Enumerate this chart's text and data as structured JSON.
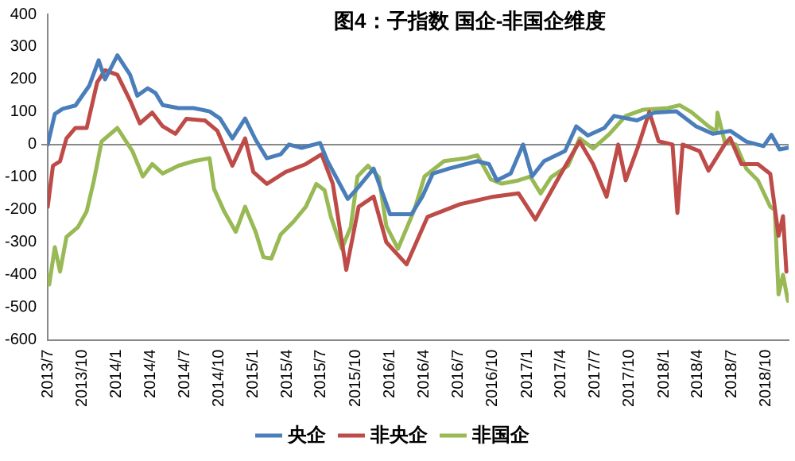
{
  "chart_data": {
    "type": "line",
    "title": "图4：子指数 国企-非国企维度",
    "xlim": [
      "2013-07-01",
      "2018-11-30"
    ],
    "xticks": [
      {
        "value": "2013-07-01",
        "label": "2013/7"
      },
      {
        "value": "2013-10-01",
        "label": "2013/10"
      },
      {
        "value": "2014-01-01",
        "label": "2014/1"
      },
      {
        "value": "2014-04-01",
        "label": "2014/4"
      },
      {
        "value": "2014-07-01",
        "label": "2014/7"
      },
      {
        "value": "2014-10-01",
        "label": "2014/10"
      },
      {
        "value": "2015-01-01",
        "label": "2015/1"
      },
      {
        "value": "2015-04-01",
        "label": "2015/4"
      },
      {
        "value": "2015-07-01",
        "label": "2015/7"
      },
      {
        "value": "2015-10-01",
        "label": "2015/10"
      },
      {
        "value": "2016-01-01",
        "label": "2016/1"
      },
      {
        "value": "2016-04-01",
        "label": "2016/4"
      },
      {
        "value": "2016-07-01",
        "label": "2016/7"
      },
      {
        "value": "2016-10-01",
        "label": "2016/10"
      },
      {
        "value": "2017-01-01",
        "label": "2017/1"
      },
      {
        "value": "2017-04-01",
        "label": "2017/4"
      },
      {
        "value": "2017-07-01",
        "label": "2017/7"
      },
      {
        "value": "2017-10-01",
        "label": "2017/10"
      },
      {
        "value": "2018-01-01",
        "label": "2018/1"
      },
      {
        "value": "2018-04-01",
        "label": "2018/4"
      },
      {
        "value": "2018-07-01",
        "label": "2018/7"
      },
      {
        "value": "2018-10-01",
        "label": "2018/10"
      }
    ],
    "ylim": [
      -600,
      400
    ],
    "yticks": [
      -600,
      -500,
      -400,
      -300,
      -200,
      -100,
      0,
      100,
      200,
      300,
      400
    ],
    "legend": "bottom",
    "marker": "none",
    "line_style": "solid",
    "series": [
      {
        "name": "央企",
        "color": "#4a7ebb",
        "x": [
          "2013-07-01",
          "2013-07-20",
          "2013-08-10",
          "2013-09-13",
          "2013-10-20",
          "2013-11-14",
          "2013-12-01",
          "2014-01-03",
          "2014-02-06",
          "2014-02-25",
          "2014-03-25",
          "2014-04-15",
          "2014-05-04",
          "2014-06-15",
          "2014-07-25",
          "2014-09-06",
          "2014-10-04",
          "2014-11-06",
          "2014-12-10",
          "2015-01-07",
          "2015-02-06",
          "2015-03-15",
          "2015-04-06",
          "2015-05-10",
          "2015-06-28",
          "2015-07-18",
          "2015-09-10",
          "2015-10-09",
          "2015-11-18",
          "2016-01-01",
          "2016-02-27",
          "2016-03-27",
          "2016-04-24",
          "2016-06-06",
          "2016-08-21",
          "2016-09-21",
          "2016-10-12",
          "2016-11-18",
          "2016-12-21",
          "2017-01-14",
          "2017-02-15",
          "2017-04-12",
          "2017-05-12",
          "2017-06-12",
          "2017-07-26",
          "2017-08-21",
          "2017-10-21",
          "2017-12-06",
          "2018-02-03",
          "2018-03-28",
          "2018-05-12",
          "2018-06-27",
          "2018-08-09",
          "2018-09-24",
          "2018-10-15",
          "2018-11-06",
          "2018-11-28"
        ],
        "values": [
          0,
          94,
          110,
          120,
          181,
          259,
          200,
          274,
          214,
          150,
          173,
          158,
          121,
          112,
          112,
          102,
          80,
          19,
          80,
          15,
          -42,
          -30,
          0,
          -10,
          5,
          -51,
          -167,
          -130,
          -74,
          -214,
          -214,
          -160,
          -89,
          -74,
          -51,
          -60,
          -110,
          -89,
          0,
          -98,
          -51,
          -20,
          56,
          28,
          51,
          88,
          74,
          98,
          102,
          56,
          33,
          42,
          9,
          -5,
          30,
          -15,
          -10
        ]
      },
      {
        "name": "非央企",
        "color": "#be4b48",
        "x": [
          "2013-07-01",
          "2013-07-15",
          "2013-08-03",
          "2013-08-20",
          "2013-09-13",
          "2013-10-13",
          "2013-11-10",
          "2013-12-01",
          "2014-01-03",
          "2014-02-06",
          "2014-03-04",
          "2014-04-06",
          "2014-05-04",
          "2014-06-07",
          "2014-07-06",
          "2014-08-25",
          "2014-09-27",
          "2014-11-06",
          "2014-12-10",
          "2015-01-01",
          "2015-02-06",
          "2015-03-28",
          "2015-05-21",
          "2015-07-02",
          "2015-08-01",
          "2015-09-06",
          "2015-10-09",
          "2015-11-18",
          "2015-12-22",
          "2016-02-14",
          "2016-04-10",
          "2016-07-06",
          "2016-10-03",
          "2016-12-09",
          "2017-01-23",
          "2017-03-28",
          "2017-05-21",
          "2017-06-26",
          "2017-08-01",
          "2017-09-01",
          "2017-09-21",
          "2017-10-26",
          "2017-11-23",
          "2017-12-18",
          "2018-01-24",
          "2018-02-06",
          "2018-02-20",
          "2018-04-06",
          "2018-04-30",
          "2018-06-12",
          "2018-06-27",
          "2018-07-27",
          "2018-09-09",
          "2018-10-12",
          "2018-11-03",
          "2018-11-15",
          "2018-11-24"
        ],
        "values": [
          -191,
          -65,
          -51,
          19,
          51,
          51,
          191,
          228,
          214,
          135,
          65,
          98,
          56,
          33,
          79,
          74,
          42,
          -65,
          19,
          -84,
          -121,
          -84,
          -60,
          -30,
          -120,
          -385,
          -191,
          -160,
          -300,
          -368,
          -222,
          -183,
          -160,
          -150,
          -230,
          -98,
          10,
          -60,
          -160,
          0,
          -110,
          0,
          100,
          10,
          0,
          -210,
          0,
          -20,
          -80,
          0,
          20,
          -60,
          -60,
          -90,
          -280,
          -220,
          -390
        ]
      },
      {
        "name": "非国企",
        "color": "#98b954",
        "x": [
          "2013-07-01",
          "2013-07-05",
          "2013-07-20",
          "2013-08-03",
          "2013-08-20",
          "2013-09-20",
          "2013-10-13",
          "2013-11-01",
          "2013-11-22",
          "2014-01-03",
          "2014-02-12",
          "2014-03-12",
          "2014-04-06",
          "2014-05-04",
          "2014-06-15",
          "2014-07-25",
          "2014-09-06",
          "2014-09-18",
          "2014-10-15",
          "2014-11-15",
          "2014-12-10",
          "2015-01-07",
          "2015-01-28",
          "2015-02-18",
          "2015-03-15",
          "2015-04-18",
          "2015-05-21",
          "2015-06-18",
          "2015-07-10",
          "2015-07-27",
          "2015-08-25",
          "2015-09-18",
          "2015-10-06",
          "2015-11-03",
          "2015-12-02",
          "2015-12-22",
          "2016-01-22",
          "2016-03-06",
          "2016-04-02",
          "2016-05-24",
          "2016-07-21",
          "2016-08-21",
          "2016-09-26",
          "2016-10-25",
          "2016-12-09",
          "2017-01-09",
          "2017-02-06",
          "2017-03-06",
          "2017-04-20",
          "2017-05-21",
          "2017-06-26",
          "2017-08-09",
          "2017-09-21",
          "2017-11-06",
          "2018-01-11",
          "2018-02-12",
          "2018-03-15",
          "2018-04-30",
          "2018-05-21",
          "2018-05-24",
          "2018-06-12",
          "2018-07-12",
          "2018-08-09",
          "2018-09-09",
          "2018-10-12",
          "2018-10-24",
          "2018-11-03",
          "2018-11-15",
          "2018-11-28"
        ],
        "values": [
          -400,
          -430,
          -315,
          -390,
          -284,
          -253,
          -205,
          -112,
          10,
          51,
          -20,
          -98,
          -60,
          -89,
          -65,
          -51,
          -42,
          -136,
          -205,
          -268,
          -191,
          -268,
          -346,
          -350,
          -276,
          -237,
          -191,
          -121,
          -140,
          -222,
          -320,
          -253,
          -98,
          -65,
          -100,
          -250,
          -320,
          -200,
          -98,
          -51,
          -42,
          -33,
          -107,
          -120,
          -110,
          -98,
          -150,
          -100,
          -65,
          19,
          -12,
          33,
          88,
          107,
          112,
          121,
          100,
          56,
          40,
          98,
          10,
          0,
          -74,
          -110,
          -191,
          -200,
          -460,
          -400,
          -480
        ]
      }
    ]
  }
}
